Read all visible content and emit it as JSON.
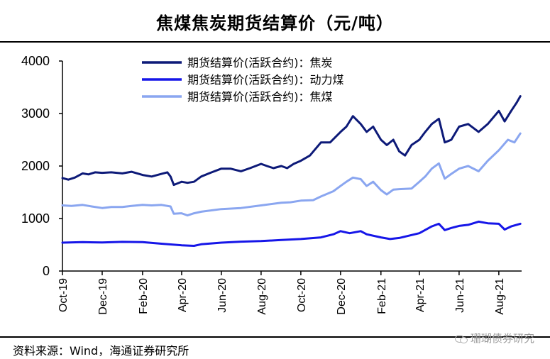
{
  "title": "焦煤焦炭期货结算价（元/吨）",
  "source": "资料来源：Wind，海通证券研究所",
  "watermark": "珊瑚债券研究",
  "chart_data": {
    "type": "line",
    "ylim": [
      0,
      4000
    ],
    "yticks": [
      0,
      1000,
      2000,
      3000,
      4000
    ],
    "xlim": [
      "2019-10-01",
      "2021-09-05"
    ],
    "xticks": [
      {
        "date": "2019-10-01",
        "label": "Oct-19"
      },
      {
        "date": "2019-12-01",
        "label": "Dec-19"
      },
      {
        "date": "2020-02-01",
        "label": "Feb-20"
      },
      {
        "date": "2020-04-01",
        "label": "Apr-20"
      },
      {
        "date": "2020-06-01",
        "label": "Jun-20"
      },
      {
        "date": "2020-08-01",
        "label": "Aug-20"
      },
      {
        "date": "2020-10-01",
        "label": "Oct-20"
      },
      {
        "date": "2020-12-01",
        "label": "Dec-20"
      },
      {
        "date": "2021-02-01",
        "label": "Feb-21"
      },
      {
        "date": "2021-04-01",
        "label": "Apr-21"
      },
      {
        "date": "2021-06-01",
        "label": "Jun-21"
      },
      {
        "date": "2021-08-01",
        "label": "Aug-21"
      }
    ],
    "legend_position": "top-center",
    "series": [
      {
        "name": "期货结算价(活跃合约)：焦炭",
        "color": "#0d1a78",
        "points": [
          [
            "2019-10-01",
            1770
          ],
          [
            "2019-10-10",
            1740
          ],
          [
            "2019-10-20",
            1780
          ],
          [
            "2019-11-01",
            1860
          ],
          [
            "2019-11-10",
            1840
          ],
          [
            "2019-11-20",
            1880
          ],
          [
            "2019-12-01",
            1870
          ],
          [
            "2019-12-15",
            1880
          ],
          [
            "2020-01-01",
            1860
          ],
          [
            "2020-01-15",
            1890
          ],
          [
            "2020-02-01",
            1830
          ],
          [
            "2020-02-15",
            1800
          ],
          [
            "2020-03-01",
            1850
          ],
          [
            "2020-03-10",
            1880
          ],
          [
            "2020-03-15",
            1800
          ],
          [
            "2020-03-20",
            1640
          ],
          [
            "2020-04-01",
            1700
          ],
          [
            "2020-04-10",
            1680
          ],
          [
            "2020-04-20",
            1700
          ],
          [
            "2020-05-01",
            1800
          ],
          [
            "2020-05-15",
            1870
          ],
          [
            "2020-06-01",
            1950
          ],
          [
            "2020-06-15",
            1950
          ],
          [
            "2020-07-01",
            1900
          ],
          [
            "2020-07-15",
            1960
          ],
          [
            "2020-08-01",
            2040
          ],
          [
            "2020-08-10",
            2000
          ],
          [
            "2020-08-20",
            1960
          ],
          [
            "2020-09-01",
            2000
          ],
          [
            "2020-09-10",
            1960
          ],
          [
            "2020-09-20",
            2040
          ],
          [
            "2020-10-01",
            2100
          ],
          [
            "2020-10-15",
            2200
          ],
          [
            "2020-11-01",
            2450
          ],
          [
            "2020-11-15",
            2450
          ],
          [
            "2020-12-01",
            2650
          ],
          [
            "2020-12-10",
            2750
          ],
          [
            "2020-12-20",
            2950
          ],
          [
            "2021-01-01",
            2800
          ],
          [
            "2021-01-10",
            2650
          ],
          [
            "2021-01-20",
            2750
          ],
          [
            "2021-02-01",
            2500
          ],
          [
            "2021-02-10",
            2400
          ],
          [
            "2021-02-20",
            2500
          ],
          [
            "2021-03-01",
            2280
          ],
          [
            "2021-03-10",
            2200
          ],
          [
            "2021-03-20",
            2400
          ],
          [
            "2021-04-01",
            2500
          ],
          [
            "2021-04-10",
            2650
          ],
          [
            "2021-04-20",
            2800
          ],
          [
            "2021-05-01",
            2900
          ],
          [
            "2021-05-10",
            2450
          ],
          [
            "2021-05-20",
            2500
          ],
          [
            "2021-06-01",
            2750
          ],
          [
            "2021-06-15",
            2800
          ],
          [
            "2021-07-01",
            2650
          ],
          [
            "2021-07-15",
            2800
          ],
          [
            "2021-08-01",
            3050
          ],
          [
            "2021-08-10",
            2850
          ],
          [
            "2021-08-20",
            3050
          ],
          [
            "2021-08-28",
            3200
          ],
          [
            "2021-09-03",
            3330
          ]
        ]
      },
      {
        "name": "期货结算价(活跃合约)：动力煤",
        "color": "#1616e8",
        "points": [
          [
            "2019-10-01",
            540
          ],
          [
            "2019-11-01",
            550
          ],
          [
            "2019-12-01",
            545
          ],
          [
            "2020-01-01",
            555
          ],
          [
            "2020-02-01",
            550
          ],
          [
            "2020-03-01",
            520
          ],
          [
            "2020-04-01",
            490
          ],
          [
            "2020-04-20",
            480
          ],
          [
            "2020-05-01",
            510
          ],
          [
            "2020-06-01",
            540
          ],
          [
            "2020-07-01",
            560
          ],
          [
            "2020-08-01",
            570
          ],
          [
            "2020-09-01",
            590
          ],
          [
            "2020-10-01",
            610
          ],
          [
            "2020-11-01",
            640
          ],
          [
            "2020-11-20",
            700
          ],
          [
            "2020-12-01",
            760
          ],
          [
            "2020-12-15",
            720
          ],
          [
            "2021-01-01",
            760
          ],
          [
            "2021-01-10",
            700
          ],
          [
            "2021-02-01",
            640
          ],
          [
            "2021-02-15",
            610
          ],
          [
            "2021-03-01",
            630
          ],
          [
            "2021-04-01",
            720
          ],
          [
            "2021-04-20",
            850
          ],
          [
            "2021-05-01",
            900
          ],
          [
            "2021-05-10",
            780
          ],
          [
            "2021-05-20",
            820
          ],
          [
            "2021-06-01",
            860
          ],
          [
            "2021-06-15",
            880
          ],
          [
            "2021-07-01",
            940
          ],
          [
            "2021-07-15",
            910
          ],
          [
            "2021-08-01",
            900
          ],
          [
            "2021-08-10",
            790
          ],
          [
            "2021-08-20",
            850
          ],
          [
            "2021-09-03",
            900
          ]
        ]
      },
      {
        "name": "期货结算价(活跃合约)：焦煤",
        "color": "#8aa6f0",
        "points": [
          [
            "2019-10-01",
            1250
          ],
          [
            "2019-10-15",
            1240
          ],
          [
            "2019-11-01",
            1260
          ],
          [
            "2019-11-15",
            1230
          ],
          [
            "2019-12-01",
            1200
          ],
          [
            "2019-12-15",
            1220
          ],
          [
            "2020-01-01",
            1220
          ],
          [
            "2020-01-15",
            1240
          ],
          [
            "2020-02-01",
            1260
          ],
          [
            "2020-02-15",
            1250
          ],
          [
            "2020-03-01",
            1260
          ],
          [
            "2020-03-15",
            1230
          ],
          [
            "2020-03-20",
            1090
          ],
          [
            "2020-04-01",
            1100
          ],
          [
            "2020-04-10",
            1060
          ],
          [
            "2020-04-20",
            1100
          ],
          [
            "2020-05-01",
            1130
          ],
          [
            "2020-06-01",
            1180
          ],
          [
            "2020-07-01",
            1200
          ],
          [
            "2020-08-01",
            1250
          ],
          [
            "2020-09-01",
            1300
          ],
          [
            "2020-09-15",
            1310
          ],
          [
            "2020-10-01",
            1340
          ],
          [
            "2020-10-20",
            1350
          ],
          [
            "2020-11-01",
            1420
          ],
          [
            "2020-11-20",
            1520
          ],
          [
            "2020-12-01",
            1620
          ],
          [
            "2020-12-10",
            1700
          ],
          [
            "2020-12-20",
            1780
          ],
          [
            "2021-01-01",
            1750
          ],
          [
            "2021-01-10",
            1620
          ],
          [
            "2021-01-20",
            1700
          ],
          [
            "2021-02-01",
            1540
          ],
          [
            "2021-02-10",
            1460
          ],
          [
            "2021-02-20",
            1550
          ],
          [
            "2021-03-01",
            1560
          ],
          [
            "2021-03-20",
            1570
          ],
          [
            "2021-04-01",
            1700
          ],
          [
            "2021-04-10",
            1800
          ],
          [
            "2021-04-20",
            1950
          ],
          [
            "2021-05-01",
            2050
          ],
          [
            "2021-05-10",
            1760
          ],
          [
            "2021-05-20",
            1850
          ],
          [
            "2021-06-01",
            1950
          ],
          [
            "2021-06-15",
            2000
          ],
          [
            "2021-07-01",
            1900
          ],
          [
            "2021-07-15",
            2100
          ],
          [
            "2021-08-01",
            2300
          ],
          [
            "2021-08-15",
            2500
          ],
          [
            "2021-08-25",
            2450
          ],
          [
            "2021-09-03",
            2620
          ]
        ]
      }
    ]
  }
}
